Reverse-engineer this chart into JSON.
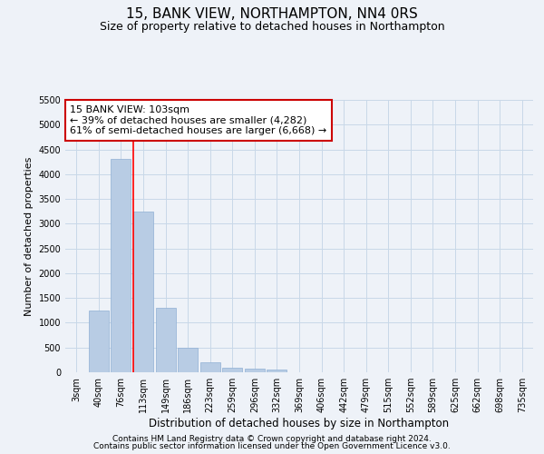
{
  "title": "15, BANK VIEW, NORTHAMPTON, NN4 0RS",
  "subtitle": "Size of property relative to detached houses in Northampton",
  "xlabel": "Distribution of detached houses by size in Northampton",
  "ylabel": "Number of detached properties",
  "categories": [
    "3sqm",
    "40sqm",
    "76sqm",
    "113sqm",
    "149sqm",
    "186sqm",
    "223sqm",
    "259sqm",
    "296sqm",
    "332sqm",
    "369sqm",
    "406sqm",
    "442sqm",
    "479sqm",
    "515sqm",
    "552sqm",
    "589sqm",
    "625sqm",
    "662sqm",
    "698sqm",
    "735sqm"
  ],
  "values": [
    0,
    1250,
    4300,
    3250,
    1300,
    500,
    200,
    100,
    75,
    50,
    0,
    0,
    0,
    0,
    0,
    0,
    0,
    0,
    0,
    0,
    0
  ],
  "bar_color": "#b8cce4",
  "bar_edge_color": "#8fafd4",
  "grid_color": "#c8d8e8",
  "background_color": "#eef2f8",
  "red_line_index": 2.57,
  "annotation_text": "15 BANK VIEW: 103sqm\n← 39% of detached houses are smaller (4,282)\n61% of semi-detached houses are larger (6,668) →",
  "annotation_box_color": "#ffffff",
  "annotation_border_color": "#cc0000",
  "ylim": [
    0,
    5500
  ],
  "yticks": [
    0,
    500,
    1000,
    1500,
    2000,
    2500,
    3000,
    3500,
    4000,
    4500,
    5000,
    5500
  ],
  "footer1": "Contains HM Land Registry data © Crown copyright and database right 2024.",
  "footer2": "Contains public sector information licensed under the Open Government Licence v3.0.",
  "title_fontsize": 11,
  "subtitle_fontsize": 9,
  "xlabel_fontsize": 8.5,
  "ylabel_fontsize": 8,
  "tick_fontsize": 7,
  "annotation_fontsize": 8,
  "footer_fontsize": 6.5
}
